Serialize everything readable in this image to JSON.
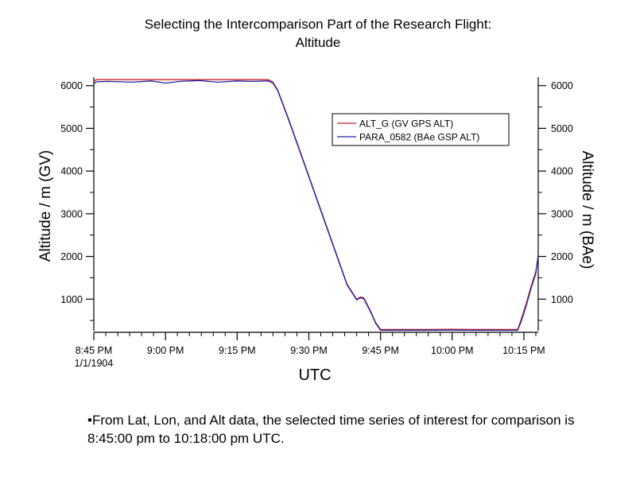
{
  "chart_data": {
    "type": "line",
    "title": "Selecting the Intercomparison Part of the Research Flight:",
    "subtitle": "Altitude",
    "xlabel": "UTC",
    "ylabel_left": "Altitude / m (GV)",
    "ylabel_right": "Altitude / m (BAe)",
    "x_unit": "minutes after 8:45 PM",
    "xlim": [
      0,
      93
    ],
    "ylim": [
      260,
      6200
    ],
    "x_ticks": [
      {
        "value": 0,
        "label": "8:45 PM"
      },
      {
        "value": 15,
        "label": "9:00 PM"
      },
      {
        "value": 30,
        "label": "9:15 PM"
      },
      {
        "value": 45,
        "label": "9:30 PM"
      },
      {
        "value": 60,
        "label": "9:45 PM"
      },
      {
        "value": 75,
        "label": "10:00 PM"
      },
      {
        "value": 90,
        "label": "10:15 PM"
      }
    ],
    "x_tick_sublabel": "1/1/1904",
    "y_ticks": [
      1000,
      2000,
      3000,
      4000,
      5000,
      6000
    ],
    "legend_position": "top-right",
    "series": [
      {
        "name": "ALT_G (GV GPS ALT)",
        "color": "#cc2222",
        "x": [
          0,
          0.5,
          5,
          10,
          15,
          20,
          25,
          30,
          33,
          36.5,
          37.5,
          38.5,
          41,
          44,
          47,
          50,
          53,
          55,
          55.8,
          56.5,
          57.2,
          58,
          59,
          60,
          61,
          65,
          70,
          75,
          80,
          85,
          88.7,
          89.5,
          90.5,
          91.5,
          92.5,
          93
        ],
        "y": [
          6100,
          6140,
          6140,
          6140,
          6140,
          6140,
          6140,
          6140,
          6140,
          6140,
          6080,
          5900,
          5150,
          4200,
          3250,
          2300,
          1350,
          1000,
          1050,
          1030,
          880,
          700,
          450,
          290,
          290,
          290,
          290,
          295,
          290,
          290,
          290,
          550,
          900,
          1300,
          1650,
          2000
        ]
      },
      {
        "name": "PARA_0582 (BAe GSP ALT)",
        "color": "#2222aa",
        "x": [
          0,
          0.5,
          3,
          8,
          12,
          15,
          18,
          22,
          26,
          30,
          33,
          36.5,
          37.5,
          38.5,
          41,
          44,
          47,
          50,
          53,
          55,
          55.8,
          56.5,
          57.2,
          58,
          59,
          60,
          61,
          65,
          70,
          75,
          80,
          85,
          88.7,
          89.5,
          90.5,
          91.5,
          92.5,
          93
        ],
        "y": [
          6040,
          6090,
          6100,
          6080,
          6110,
          6060,
          6100,
          6120,
          6080,
          6110,
          6100,
          6110,
          6060,
          5880,
          5130,
          4180,
          3230,
          2280,
          1330,
          980,
          1030,
          1010,
          860,
          680,
          430,
          270,
          270,
          270,
          270,
          275,
          270,
          270,
          270,
          500,
          850,
          1250,
          1600,
          2050
        ]
      }
    ]
  },
  "footnote": "•From Lat, Lon, and Alt data, the selected time series of interest for comparison is 8:45:00 pm to 10:18:00 pm UTC."
}
